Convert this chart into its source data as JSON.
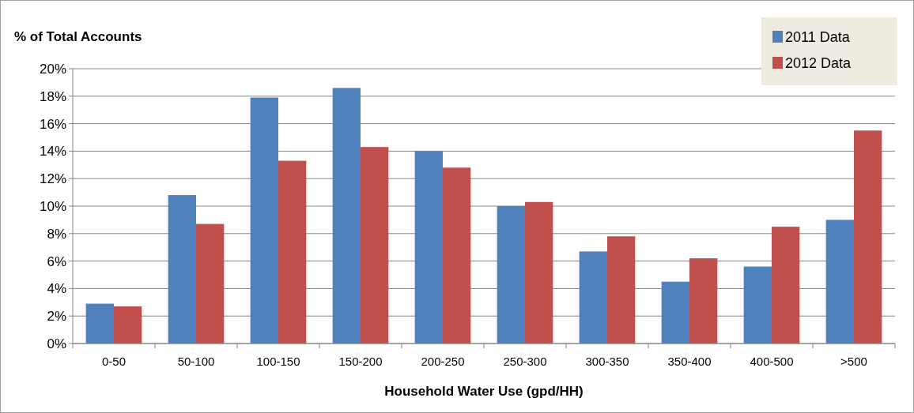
{
  "chart_data": {
    "type": "bar",
    "ylabel": "% of Total Accounts",
    "xlabel": "Household Water Use (gpd/HH)",
    "categories": [
      "0-50",
      "50-100",
      "100-150",
      "150-200",
      "200-250",
      "250-300",
      "300-350",
      "350-400",
      "400-500",
      ">500"
    ],
    "series": [
      {
        "name": "2011 Data",
        "color": "#4f81bd",
        "values": [
          2.9,
          10.8,
          17.9,
          18.6,
          14.0,
          10.0,
          6.7,
          4.5,
          5.6,
          9.0
        ]
      },
      {
        "name": "2012 Data",
        "color": "#c0504d",
        "values": [
          2.7,
          8.7,
          13.3,
          14.3,
          12.8,
          10.3,
          7.8,
          6.2,
          8.5,
          15.5
        ]
      }
    ],
    "ylim": [
      0,
      20
    ],
    "yticks": [
      {
        "value": 0,
        "label": "0%"
      },
      {
        "value": 2,
        "label": "2%"
      },
      {
        "value": 4,
        "label": "4%"
      },
      {
        "value": 6,
        "label": "6%"
      },
      {
        "value": 8,
        "label": "8%"
      },
      {
        "value": 10,
        "label": "10%"
      },
      {
        "value": 12,
        "label": "12%"
      },
      {
        "value": 14,
        "label": "14%"
      },
      {
        "value": 16,
        "label": "16%"
      },
      {
        "value": 18,
        "label": "18%"
      },
      {
        "value": 20,
        "label": "20%"
      }
    ],
    "grid": "y",
    "legend": "top right"
  }
}
